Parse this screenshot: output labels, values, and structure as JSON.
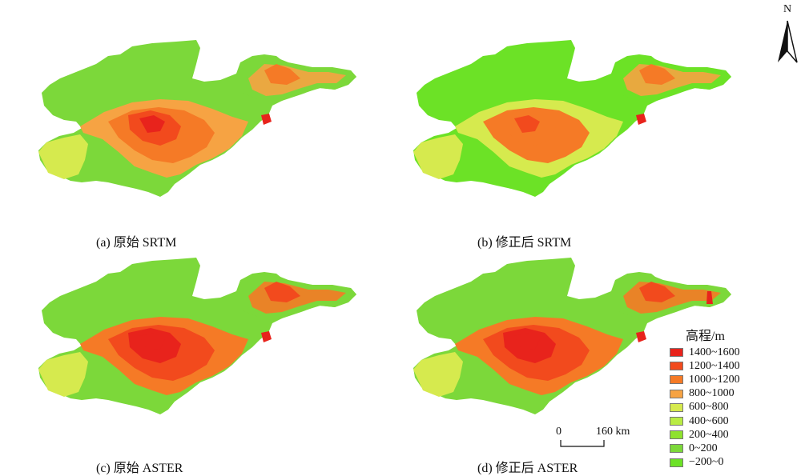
{
  "panels": [
    {
      "id": "a",
      "caption": "(a) 原始 SRTM",
      "style": "srtm-orig"
    },
    {
      "id": "b",
      "caption": "(b) 修正后 SRTM",
      "style": "srtm-fix"
    },
    {
      "id": "c",
      "caption": "(c) 原始 ASTER",
      "style": "aster-orig"
    },
    {
      "id": "d",
      "caption": "(d) 修正后 ASTER",
      "style": "aster-fix"
    }
  ],
  "north": {
    "label": "N"
  },
  "legend": {
    "title": "高程/m",
    "classes": [
      {
        "label": "1400~1600",
        "color": "#e8231c"
      },
      {
        "label": "1200~1400",
        "color": "#f24a1d"
      },
      {
        "label": "1000~1200",
        "color": "#f57a26"
      },
      {
        "label": "800~1000",
        "color": "#f6a343"
      },
      {
        "label": "600~800",
        "color": "#d6ea4e"
      },
      {
        "label": "400~600",
        "color": "#b9ec44"
      },
      {
        "label": "200~400",
        "color": "#8fe22f"
      },
      {
        "label": "0~200",
        "color": "#7cd83a"
      },
      {
        "label": "−200~0",
        "color": "#6ce226"
      }
    ]
  },
  "scale_bar": {
    "start": "0",
    "end": "160 km"
  }
}
